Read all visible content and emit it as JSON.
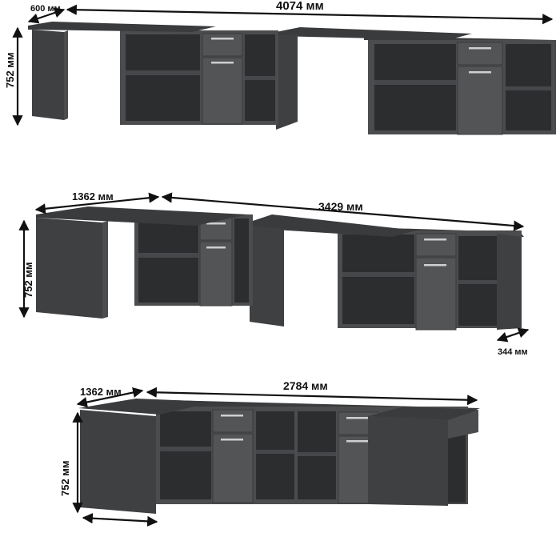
{
  "configurations": [
    {
      "width_label": "4074 мм",
      "depth_label": "600 мм",
      "height_label": "752 мм"
    },
    {
      "width_label": "3429 мм",
      "depth_label": "1362 мм",
      "height_label": "752 мм",
      "cabinet_depth_label": "344 мм"
    },
    {
      "width_label": "2784 мм",
      "depth_label": "1362 мм",
      "height_label": "752 мм"
    }
  ],
  "colors": {
    "furniture": "#4b4c4e",
    "handles": "#cfcfcf",
    "dimension_lines": "#111111"
  }
}
